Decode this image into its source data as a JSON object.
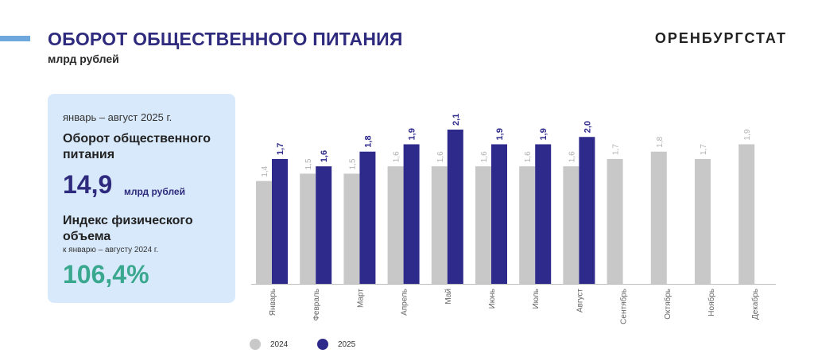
{
  "header": {
    "title": "ОБОРОТ ОБЩЕСТВЕННОГО ПИТАНИЯ",
    "subtitle": "млрд рублей",
    "brand": "ОРЕНБУРГСТАТ"
  },
  "panel": {
    "period": "январь – август 2025 г.",
    "kpi1_label": "Оборот общественного питания",
    "kpi1_value": "14,9",
    "kpi1_unit": "млрд рублей",
    "kpi2_label": "Индекс физического объема",
    "kpi2_note": "к январю – августу 2024 г.",
    "kpi2_value": "106,4%"
  },
  "colors": {
    "series_2024": "#c8c8c8",
    "series_2025": "#2e2a8c",
    "label_2024": "#b0b0b0",
    "label_2025": "#2e2a8c"
  },
  "chart_data": {
    "type": "bar",
    "title": "ОБОРОТ ОБЩЕСТВЕННОГО ПИТАНИЯ",
    "ylabel": "млрд рублей",
    "xlabel": "",
    "ylim": [
      0,
      2.2
    ],
    "legend_position": "bottom-left",
    "grid": false,
    "categories": [
      "Январь",
      "Февраль",
      "Март",
      "Апрель",
      "Май",
      "Июнь",
      "Июль",
      "Август",
      "Сентябрь",
      "Октябрь",
      "Ноябрь",
      "Декабрь"
    ],
    "series": [
      {
        "name": "2024",
        "values": [
          1.4,
          1.5,
          1.5,
          1.6,
          1.6,
          1.6,
          1.6,
          1.6,
          1.7,
          1.8,
          1.7,
          1.9
        ],
        "labels": [
          "1,4",
          "1,5",
          "1,5",
          "1,6",
          "1,6",
          "1,6",
          "1,6",
          "1,6",
          "1,7",
          "1,8",
          "1,7",
          "1,9"
        ]
      },
      {
        "name": "2025",
        "values": [
          1.7,
          1.6,
          1.8,
          1.9,
          2.1,
          1.9,
          1.9,
          2.0,
          null,
          null,
          null,
          null
        ],
        "labels": [
          "1,7",
          "1,6",
          "1,8",
          "1,9",
          "2,1",
          "1,9",
          "1,9",
          "2,0",
          null,
          null,
          null,
          null
        ]
      }
    ]
  }
}
